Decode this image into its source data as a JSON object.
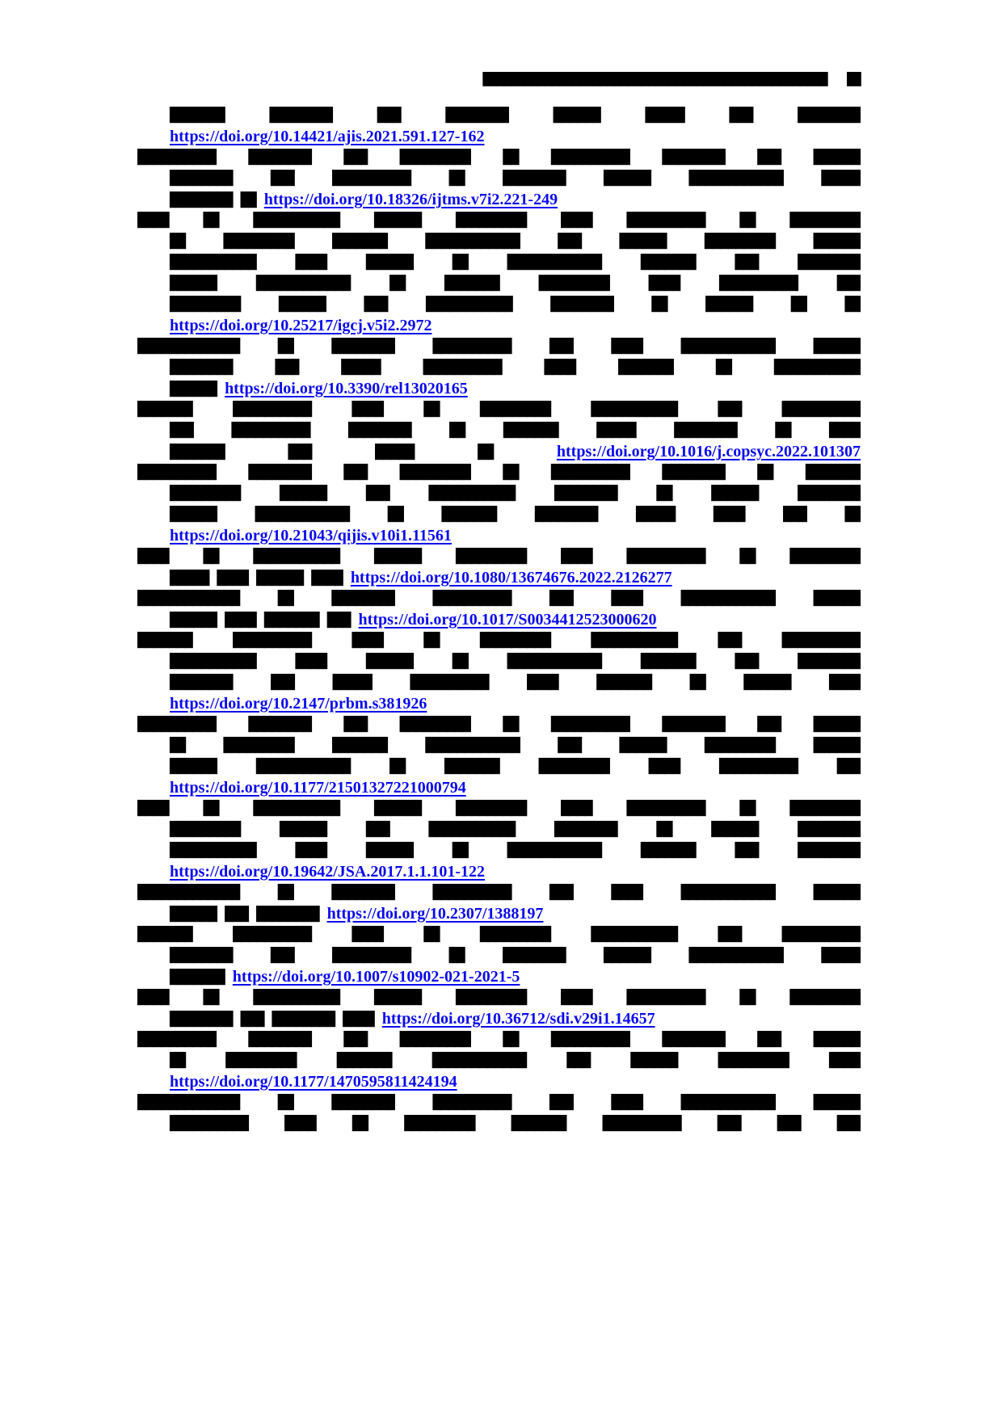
{
  "colors": {
    "ink": "#000000",
    "link_blue": "#0a0aee",
    "paper": "#ffffff"
  },
  "header": {
    "running_title_blob": "██████████████████████████████████████████████████",
    "page_number_blob": "██"
  },
  "links": [
    {
      "id": "doi-1",
      "url": "https://doi.org/10.14421/ajis.2021.591.127-162"
    },
    {
      "id": "doi-2",
      "url": "https://doi.org/10.18326/ijtms.v7i2.221-249"
    },
    {
      "id": "doi-3",
      "url": "https://doi.org/10.25217/igcj.v5i2.2972"
    },
    {
      "id": "doi-4",
      "url": "https://doi.org/10.3390/rel13020165"
    },
    {
      "id": "doi-5",
      "url": "https://doi.org/10.1016/j.copsyc.2022.101307"
    },
    {
      "id": "doi-6",
      "url": "https://doi.org/10.21043/qijis.v10i1.11561"
    },
    {
      "id": "doi-7",
      "url": "https://doi.org/10.1080/13674676.2022.2126277"
    },
    {
      "id": "doi-8",
      "url": "https://doi.org/10.1017/S0034412523000620"
    },
    {
      "id": "doi-9",
      "url": "https://doi.org/10.2147/prbm.s381926"
    },
    {
      "id": "doi-10",
      "url": "https://doi.org/10.1177/21501327221000794"
    },
    {
      "id": "doi-11",
      "url": "https://doi.org/10.19642/JSA.2017.1.1.101-122"
    },
    {
      "id": "doi-12",
      "url": "https://doi.org/10.2307/1388197"
    },
    {
      "id": "doi-13",
      "url": "https://doi.org/10.1007/s10902-021-2021-5"
    },
    {
      "id": "doi-14",
      "url": "https://doi.org/10.36712/sdi.v29i1.14657"
    },
    {
      "id": "doi-15",
      "url": "https://doi.org/10.1177/1470595811424194"
    }
  ],
  "rows": [
    {
      "indent": true,
      "justify": true,
      "segments": [
        {
          "k": "b",
          "t": "███████ ████████ ███ ████████  ██████  █████  ███ ████████"
        }
      ]
    },
    {
      "indent": true,
      "justify": false,
      "segments": [
        {
          "k": "l",
          "ref": 0
        }
      ]
    },
    {
      "indent": false,
      "justify": true,
      "segments": [
        {
          "k": "b",
          "t": "██████████ ████████ ███ █████████ ██ ██████████ ████████ ███ ██████"
        }
      ]
    },
    {
      "indent": true,
      "justify": true,
      "segments": [
        {
          "k": "b",
          "t": "████████ ███ ██████████ ██ ████████ ██████ ████████████ █████"
        }
      ]
    },
    {
      "indent": true,
      "justify": false,
      "segments": [
        {
          "k": "b",
          "t": "████████ ██"
        },
        {
          "k": "l",
          "ref": 1
        }
      ]
    },
    {
      "indent": false,
      "justify": true,
      "segments": [
        {
          "k": "b",
          "t": "████ ██ ███████████ ██████ █████████ ████ ██████████ ██ █████████"
        }
      ]
    },
    {
      "indent": true,
      "justify": true,
      "segments": [
        {
          "k": "b",
          "t": "██ █████████ ███████ ████████████ ███ ██████ █████████ ██████"
        }
      ]
    },
    {
      "indent": true,
      "justify": true,
      "segments": [
        {
          "k": "b",
          "t": "███████████ ████ ██████ ██ ████████████ ███████ ███ ████████"
        }
      ]
    },
    {
      "indent": true,
      "justify": true,
      "segments": [
        {
          "k": "b",
          "t": "██████ ████████████ ██ ███████ █████████ ████ ██████████ ███"
        }
      ]
    },
    {
      "indent": true,
      "justify": true,
      "segments": [
        {
          "k": "b",
          "t": "█████████  ██████ ███ ███████████  ████████ ██  ██████ ██ ██"
        }
      ]
    },
    {
      "indent": true,
      "justify": false,
      "segments": [
        {
          "k": "l",
          "ref": 2
        }
      ]
    },
    {
      "indent": false,
      "justify": true,
      "segments": [
        {
          "k": "b",
          "t": "█████████████ ██ ████████ ██████████ ███ ████ ████████████ ██████"
        }
      ]
    },
    {
      "indent": true,
      "justify": true,
      "segments": [
        {
          "k": "b",
          "t": "████████  ███ █████  ██████████  ████ ███████  ██ ███████████"
        }
      ]
    },
    {
      "indent": true,
      "justify": false,
      "segments": [
        {
          "k": "b",
          "t": "██████"
        },
        {
          "k": "l",
          "ref": 3
        }
      ]
    },
    {
      "indent": false,
      "justify": true,
      "segments": [
        {
          "k": "b",
          "t": "███████ ██████████ ████ ██ █████████ ███████████ ███ ██████████"
        }
      ]
    },
    {
      "indent": true,
      "justify": true,
      "segments": [
        {
          "k": "b",
          "t": "███ ██████████  ████████ ██  ███████ █████  ████████ ██ ████"
        }
      ]
    },
    {
      "indent": true,
      "justify": true,
      "segments": [
        {
          "k": "b",
          "t": "███████ ███ █████ ██"
        },
        {
          "k": "l",
          "ref": 4
        }
      ]
    },
    {
      "indent": false,
      "justify": true,
      "segments": [
        {
          "k": "b",
          "t": "██████████ ████████ ███ █████████ ██ ██████████ ████████ ██ ███████"
        }
      ]
    },
    {
      "indent": true,
      "justify": true,
      "segments": [
        {
          "k": "b",
          "t": "█████████ ██████ ███ ███████████ ████████ ██ ██████ ████████"
        }
      ]
    },
    {
      "indent": true,
      "justify": true,
      "segments": [
        {
          "k": "b",
          "t": "██████ ████████████ ██ ███████ ████████  █████  ████  ███ ██"
        }
      ]
    },
    {
      "indent": true,
      "justify": false,
      "segments": [
        {
          "k": "l",
          "ref": 5
        }
      ]
    },
    {
      "indent": false,
      "justify": true,
      "segments": [
        {
          "k": "b",
          "t": "████ ██ ███████████ ██████ █████████ ████ ██████████ ██ █████████"
        }
      ]
    },
    {
      "indent": true,
      "justify": false,
      "segments": [
        {
          "k": "b",
          "t": "█████ ████ ██████ ████"
        },
        {
          "k": "l",
          "ref": 6
        }
      ]
    },
    {
      "indent": false,
      "justify": true,
      "segments": [
        {
          "k": "b",
          "t": "█████████████ ██ ████████ ██████████ ███ ████ ████████████ ██████"
        }
      ]
    },
    {
      "indent": true,
      "justify": false,
      "segments": [
        {
          "k": "b",
          "t": "██████ ████ ███████ ███"
        },
        {
          "k": "l",
          "ref": 7
        }
      ]
    },
    {
      "indent": false,
      "justify": true,
      "segments": [
        {
          "k": "b",
          "t": "███████ ██████████ ████ ██ █████████ ███████████ ███ ██████████"
        }
      ]
    },
    {
      "indent": true,
      "justify": true,
      "segments": [
        {
          "k": "b",
          "t": "███████████ ████ ██████ ██ ████████████ ███████ ███ ████████"
        }
      ]
    },
    {
      "indent": true,
      "justify": true,
      "segments": [
        {
          "k": "b",
          "t": "████████  ███ █████  ██████████  ████ ███████  ██ ██████ ████"
        }
      ]
    },
    {
      "indent": true,
      "justify": false,
      "segments": [
        {
          "k": "l",
          "ref": 8
        }
      ]
    },
    {
      "indent": false,
      "justify": true,
      "segments": [
        {
          "k": "b",
          "t": "██████████ ████████ ███ █████████ ██ ██████████ ████████ ███ ██████"
        }
      ]
    },
    {
      "indent": true,
      "justify": true,
      "segments": [
        {
          "k": "b",
          "t": "██ █████████ ███████ ████████████ ███ ██████ █████████ ██████"
        }
      ]
    },
    {
      "indent": true,
      "justify": true,
      "segments": [
        {
          "k": "b",
          "t": "██████ ████████████ ██ ███████ █████████ ████ ██████████ ███"
        }
      ]
    },
    {
      "indent": true,
      "justify": false,
      "segments": [
        {
          "k": "l",
          "ref": 9
        }
      ]
    },
    {
      "indent": false,
      "justify": true,
      "segments": [
        {
          "k": "b",
          "t": "████ ██ ███████████ ██████ █████████ ████ ██████████ ██ █████████"
        }
      ]
    },
    {
      "indent": true,
      "justify": true,
      "segments": [
        {
          "k": "b",
          "t": "█████████ ██████ ███ ███████████ ████████ ██ ██████ ████████"
        }
      ]
    },
    {
      "indent": true,
      "justify": true,
      "segments": [
        {
          "k": "b",
          "t": "███████████ ████ ██████ ██ ████████████ ███████ ███ ████████"
        }
      ]
    },
    {
      "indent": true,
      "justify": false,
      "segments": [
        {
          "k": "l",
          "ref": 10
        }
      ]
    },
    {
      "indent": false,
      "justify": true,
      "segments": [
        {
          "k": "b",
          "t": "█████████████ ██ ████████ ██████████ ███ ████ ████████████ ██████"
        }
      ]
    },
    {
      "indent": true,
      "justify": false,
      "segments": [
        {
          "k": "b",
          "t": "██████ ███ ████████"
        },
        {
          "k": "l",
          "ref": 11
        }
      ]
    },
    {
      "indent": false,
      "justify": true,
      "segments": [
        {
          "k": "b",
          "t": "███████ ██████████ ████ ██ █████████ ███████████ ███ ██████████"
        }
      ]
    },
    {
      "indent": true,
      "justify": true,
      "segments": [
        {
          "k": "b",
          "t": "████████ ███ ██████████ ██ ████████ ██████ ████████████ █████"
        }
      ]
    },
    {
      "indent": true,
      "justify": false,
      "segments": [
        {
          "k": "b",
          "t": "███████"
        },
        {
          "k": "l",
          "ref": 12
        }
      ]
    },
    {
      "indent": false,
      "justify": true,
      "segments": [
        {
          "k": "b",
          "t": "████ ██ ███████████ ██████ █████████ ████ ██████████ ██ █████████"
        }
      ]
    },
    {
      "indent": true,
      "justify": false,
      "segments": [
        {
          "k": "b",
          "t": "████████ ███ ████████ ████"
        },
        {
          "k": "l",
          "ref": 13
        }
      ]
    },
    {
      "indent": false,
      "justify": true,
      "segments": [
        {
          "k": "b",
          "t": "██████████ ████████ ███ █████████ ██ ██████████ ████████ ███ ██████"
        }
      ]
    },
    {
      "indent": true,
      "justify": true,
      "segments": [
        {
          "k": "b",
          "t": "██ █████████ ███████ ████████████ ███ ██████  █████████  ████"
        }
      ]
    },
    {
      "indent": true,
      "justify": false,
      "segments": [
        {
          "k": "l",
          "ref": 14
        }
      ]
    },
    {
      "indent": false,
      "justify": true,
      "segments": [
        {
          "k": "b",
          "t": "█████████████ ██ ████████ ██████████ ███ ████ ████████████ ██████"
        }
      ]
    },
    {
      "indent": true,
      "justify": true,
      "segments": [
        {
          "k": "b",
          "t": "██████████ ████ ██ █████████ ███████ ██████████ ███ ███ ███"
        }
      ]
    }
  ]
}
